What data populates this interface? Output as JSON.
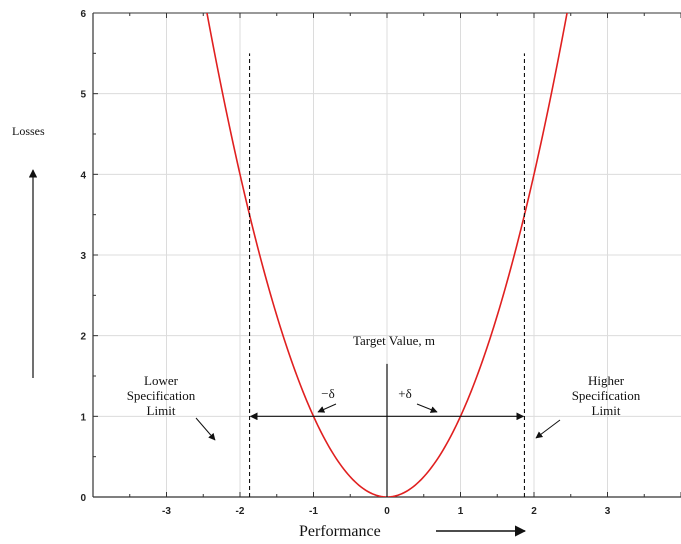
{
  "chart_data": {
    "type": "line",
    "title": "",
    "xlabel": "Performance",
    "ylabel": "Losses",
    "xlim": [
      -4,
      4
    ],
    "ylim": [
      0,
      6
    ],
    "x_ticks": [
      -3,
      -2,
      -1,
      0,
      1,
      2,
      3
    ],
    "y_ticks": [
      0,
      1,
      2,
      3,
      4,
      5,
      6
    ],
    "grid": true,
    "series": [
      {
        "name": "",
        "color": "#e02020",
        "function": "y = x^2",
        "x_range": [
          -2.55,
          2.55
        ]
      }
    ],
    "spec_limits": {
      "lower": -1.87,
      "upper": 1.87,
      "line_top": 5.5
    },
    "target": {
      "x": 0,
      "line_top": 1.65
    },
    "annotations": {
      "target_label": "Target Value, m",
      "minus_delta": "−δ",
      "plus_delta": "+δ",
      "lower_spec": [
        "Lower",
        "Specification",
        "Limit"
      ],
      "higher_spec": [
        "Higher",
        "Specification",
        "Limit"
      ]
    }
  }
}
